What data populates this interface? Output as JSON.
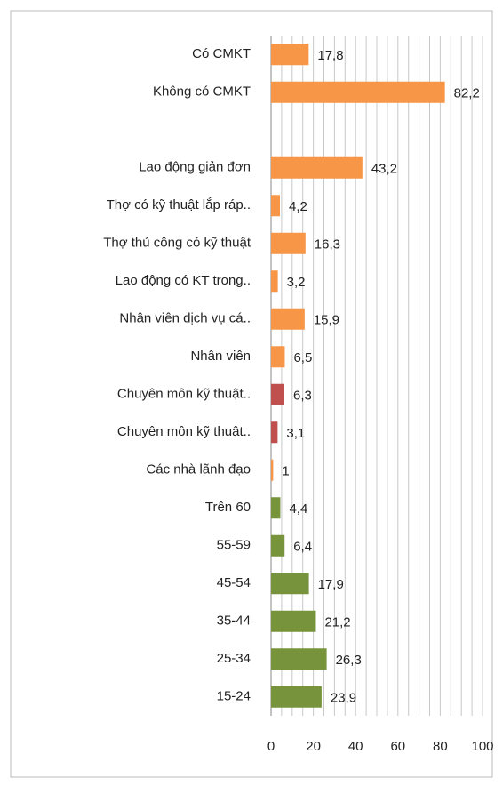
{
  "chart_data": {
    "type": "bar",
    "orientation": "horizontal",
    "categories": [
      "Có CMKT",
      "Không có CMKT",
      null,
      "Lao động giản đơn",
      "Thợ có kỹ thuật lắp ráp..",
      "Thợ thủ công có kỹ thuật",
      "Lao động có KT trong..",
      "Nhân viên dịch vụ cá..",
      "Nhân viên",
      "Chuyên môn kỹ thuật..",
      "Chuyên môn kỹ thuật..",
      "Các nhà lãnh đạo",
      "Trên 60",
      "55-59",
      "45-54",
      "35-44",
      "25-34",
      "15-24"
    ],
    "values": [
      17.8,
      82.2,
      null,
      43.2,
      4.2,
      16.3,
      3.2,
      15.9,
      6.5,
      6.3,
      3.1,
      1,
      4.4,
      6.4,
      17.9,
      21.2,
      26.3,
      23.9
    ],
    "value_labels": [
      "17,8",
      "82,2",
      null,
      "43,2",
      "4,2",
      "16,3",
      "3,2",
      "15,9",
      "6,5",
      "6,3",
      "3,1",
      "1",
      "4,4",
      "6,4",
      "17,9",
      "21,2",
      "26,3",
      "23,9"
    ],
    "colors": [
      "#f79646",
      "#f79646",
      null,
      "#f79646",
      "#f79646",
      "#f79646",
      "#f79646",
      "#f79646",
      "#f79646",
      "#c0504d",
      "#c0504d",
      "#f79646",
      "#77933c",
      "#77933c",
      "#77933c",
      "#77933c",
      "#77933c",
      "#77933c"
    ],
    "xlim": [
      0,
      100
    ],
    "xticks": [
      0,
      20,
      40,
      60,
      80,
      100
    ],
    "minor_grid": [
      5,
      10,
      15,
      25,
      30,
      35,
      45,
      50,
      55,
      65,
      70,
      75,
      85,
      90,
      95
    ],
    "grid": true
  }
}
